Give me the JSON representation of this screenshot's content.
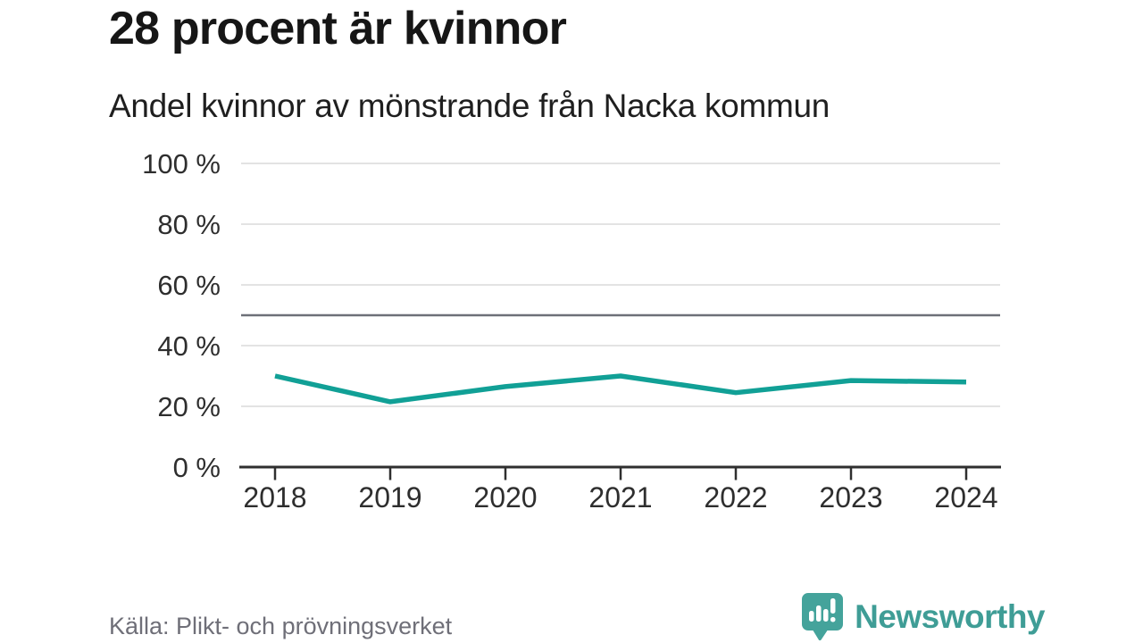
{
  "page": {
    "title": "28 procent är kvinnor",
    "subtitle": "Andel kvinnor av mönstrande från Nacka kommun",
    "source": "Källa: Plikt- och prövningsverket",
    "brand_name": "Newsworthy"
  },
  "colors": {
    "line": "#11a096",
    "grid": "#e3e3e3",
    "reference_line": "#6d7078",
    "axis": "#2f2f2f",
    "brand_icon": "#44a39b",
    "brand_text": "#3f9d96"
  },
  "chart_data": {
    "type": "line",
    "title": "28 procent är kvinnor",
    "subtitle": "Andel kvinnor av mönstrande från Nacka kommun",
    "x": [
      2018,
      2019,
      2020,
      2021,
      2022,
      2023,
      2024
    ],
    "series": [
      {
        "name": "Andel kvinnor av mönstrande",
        "values": [
          30,
          21.5,
          26.5,
          30,
          24.5,
          28.5,
          28
        ]
      }
    ],
    "xlabel": "",
    "ylabel": "",
    "ylim": [
      0,
      100
    ],
    "yticks": [
      0,
      20,
      40,
      60,
      80,
      100
    ],
    "ytick_format": "{v} %",
    "reference_line": 50,
    "grid": true,
    "legend": "none",
    "source": "Källa: Plikt- och prövningsverket"
  }
}
